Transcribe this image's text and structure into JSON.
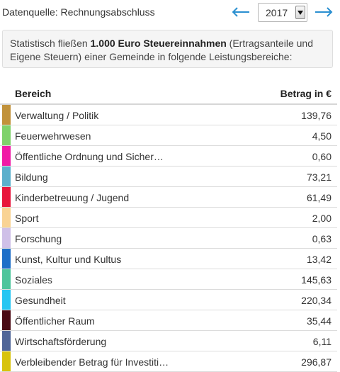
{
  "header": {
    "source_label": "Datenquelle: Rechnungsabschluss",
    "year": "2017",
    "prev_icon": "arrow-left-icon",
    "next_icon": "arrow-right-icon",
    "accent_color": "#2a8fd0"
  },
  "info": {
    "prefix": "Statistisch fließen ",
    "bold": "1.000 Euro Steuereinnahmen",
    "suffix": " (Ertragsanteile und Eigene Steuern) einer Gemeinde in folgende Leistungsbereiche:"
  },
  "table": {
    "col_area": "Bereich",
    "col_amount": "Betrag in €",
    "rows": [
      {
        "label": "Verwaltung / Politik",
        "value": "139,76",
        "color": "#c1923b"
      },
      {
        "label": "Feuerwehrwesen",
        "value": "4,50",
        "color": "#7fd26b"
      },
      {
        "label": "Öffentliche Ordnung und Sicher…",
        "value": "0,60",
        "color": "#f01ba6"
      },
      {
        "label": "Bildung",
        "value": "73,21",
        "color": "#5bb0cc"
      },
      {
        "label": "Kinderbetreuung / Jugend",
        "value": "61,49",
        "color": "#e8163c"
      },
      {
        "label": "Sport",
        "value": "2,00",
        "color": "#f9d394"
      },
      {
        "label": "Forschung",
        "value": "0,63",
        "color": "#cfc0e8"
      },
      {
        "label": "Kunst, Kultur und Kultus",
        "value": "13,42",
        "color": "#1f6fc8"
      },
      {
        "label": "Soziales",
        "value": "145,63",
        "color": "#4ec59c"
      },
      {
        "label": "Gesundheit",
        "value": "220,34",
        "color": "#27c6f2"
      },
      {
        "label": "Öffentlicher Raum",
        "value": "35,44",
        "color": "#4a0a14"
      },
      {
        "label": "Wirtschaftsförderung",
        "value": "6,11",
        "color": "#4f6598"
      },
      {
        "label": "Verbleibender Betrag für Investiti…",
        "value": "296,87",
        "color": "#d8c30c"
      }
    ]
  }
}
